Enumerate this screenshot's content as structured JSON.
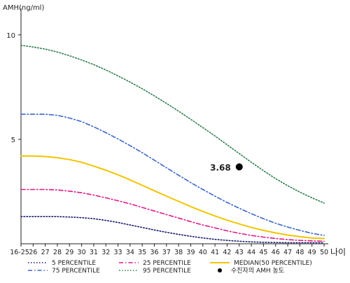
{
  "chart_data": {
    "type": "line",
    "ylabel": "AMH(ng/ml)",
    "xlabel": "나이",
    "x": [
      "16-25",
      "26",
      "27",
      "28",
      "29",
      "30",
      "31",
      "32",
      "33",
      "34",
      "35",
      "36",
      "37",
      "38",
      "39",
      "40",
      "41",
      "42",
      "43",
      "44",
      "45",
      "46",
      "47",
      "48",
      "49",
      "50"
    ],
    "y_ticks": [
      10,
      5
    ],
    "ylim": [
      0,
      11
    ],
    "grid": false,
    "legend_position": "bottom",
    "series": [
      {
        "name": "5 PERCENTILE",
        "style": "dotted",
        "color": "#1a1a6e",
        "values": [
          1.3,
          1.3,
          1.3,
          1.3,
          1.28,
          1.25,
          1.2,
          1.12,
          1.02,
          0.9,
          0.78,
          0.66,
          0.55,
          0.45,
          0.36,
          0.28,
          0.21,
          0.16,
          0.12,
          0.09,
          0.07,
          0.06,
          0.05,
          0.05,
          0.05,
          0.05
        ]
      },
      {
        "name": "25 PERCENTILE",
        "style": "dashdot",
        "color": "#e0198a",
        "values": [
          2.6,
          2.6,
          2.6,
          2.58,
          2.52,
          2.44,
          2.33,
          2.2,
          2.06,
          1.91,
          1.74,
          1.57,
          1.4,
          1.23,
          1.06,
          0.9,
          0.76,
          0.62,
          0.5,
          0.4,
          0.32,
          0.25,
          0.2,
          0.16,
          0.14,
          0.12
        ]
      },
      {
        "name": "MEDIAN(50 PERCENTILE)",
        "style": "solid",
        "color": "#f2c500",
        "values": [
          4.2,
          4.2,
          4.18,
          4.12,
          4.03,
          3.9,
          3.72,
          3.52,
          3.3,
          3.06,
          2.8,
          2.54,
          2.28,
          2.03,
          1.78,
          1.55,
          1.33,
          1.13,
          0.95,
          0.78,
          0.64,
          0.52,
          0.42,
          0.34,
          0.28,
          0.25
        ]
      },
      {
        "name": "75 PERCENTILE",
        "style": "dashdot",
        "color": "#3a66c8",
        "values": [
          6.2,
          6.2,
          6.2,
          6.15,
          6.02,
          5.85,
          5.6,
          5.32,
          5.02,
          4.7,
          4.36,
          4.0,
          3.64,
          3.28,
          2.93,
          2.6,
          2.28,
          1.98,
          1.7,
          1.44,
          1.2,
          0.98,
          0.8,
          0.64,
          0.5,
          0.4
        ]
      },
      {
        "name": "95 PERCENTILE",
        "style": "dotted",
        "color": "#2e7d4f",
        "values": [
          9.5,
          9.42,
          9.32,
          9.18,
          9.0,
          8.8,
          8.58,
          8.32,
          8.04,
          7.74,
          7.42,
          7.08,
          6.72,
          6.35,
          5.96,
          5.56,
          5.16,
          4.74,
          4.32,
          3.9,
          3.5,
          3.12,
          2.78,
          2.47,
          2.2,
          1.95
        ]
      }
    ],
    "marker": {
      "name": "수진자의 AMH 농도",
      "x": "43",
      "y": 3.68,
      "label": "3.68",
      "color": "#000000"
    }
  }
}
